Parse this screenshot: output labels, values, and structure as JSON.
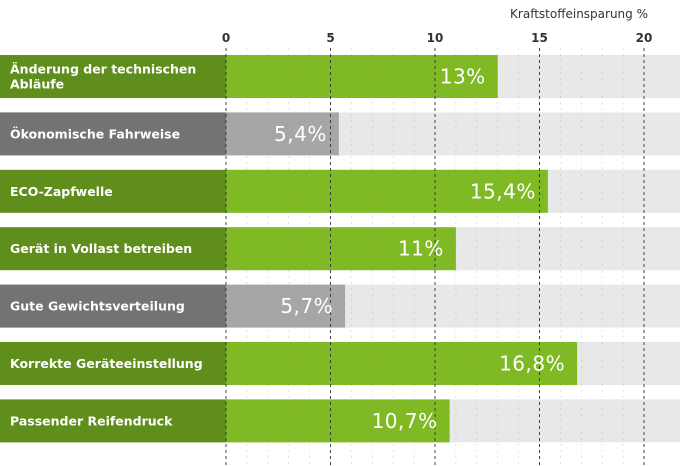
{
  "chart_data": {
    "type": "bar",
    "orientation": "horizontal",
    "title": "",
    "xlabel": "Kraftstoffeinsparung %",
    "ylabel": "",
    "xlim": [
      0,
      21
    ],
    "ticks": [
      0,
      5,
      10,
      15,
      20
    ],
    "grid": "vertical-dashed",
    "categories": [
      "Änderung der technischen\nAbläufe",
      "Ökonomische Fahrweise",
      "ECO-Zapfwelle",
      "Gerät in Vollast betreiben",
      "Gute Gewichtsverteilung",
      "Korrekte Geräteeinstellung",
      "Passender Reifendruck"
    ],
    "values": [
      13,
      5.4,
      15.4,
      11,
      5.7,
      16.8,
      10.7
    ],
    "value_labels": [
      "13%",
      "5,4%",
      "15,4%",
      "11%",
      "5,7%",
      "16,8%",
      "10,7%"
    ],
    "group": [
      "green",
      "gray",
      "green",
      "green",
      "gray",
      "green",
      "green"
    ]
  },
  "colors": {
    "green_bar": "#7fba24",
    "green_label": "#5f8e1c",
    "gray_bar": "#a6a6a6",
    "gray_label": "#737373",
    "track": "#e8e8e8",
    "grid": "#333333"
  }
}
